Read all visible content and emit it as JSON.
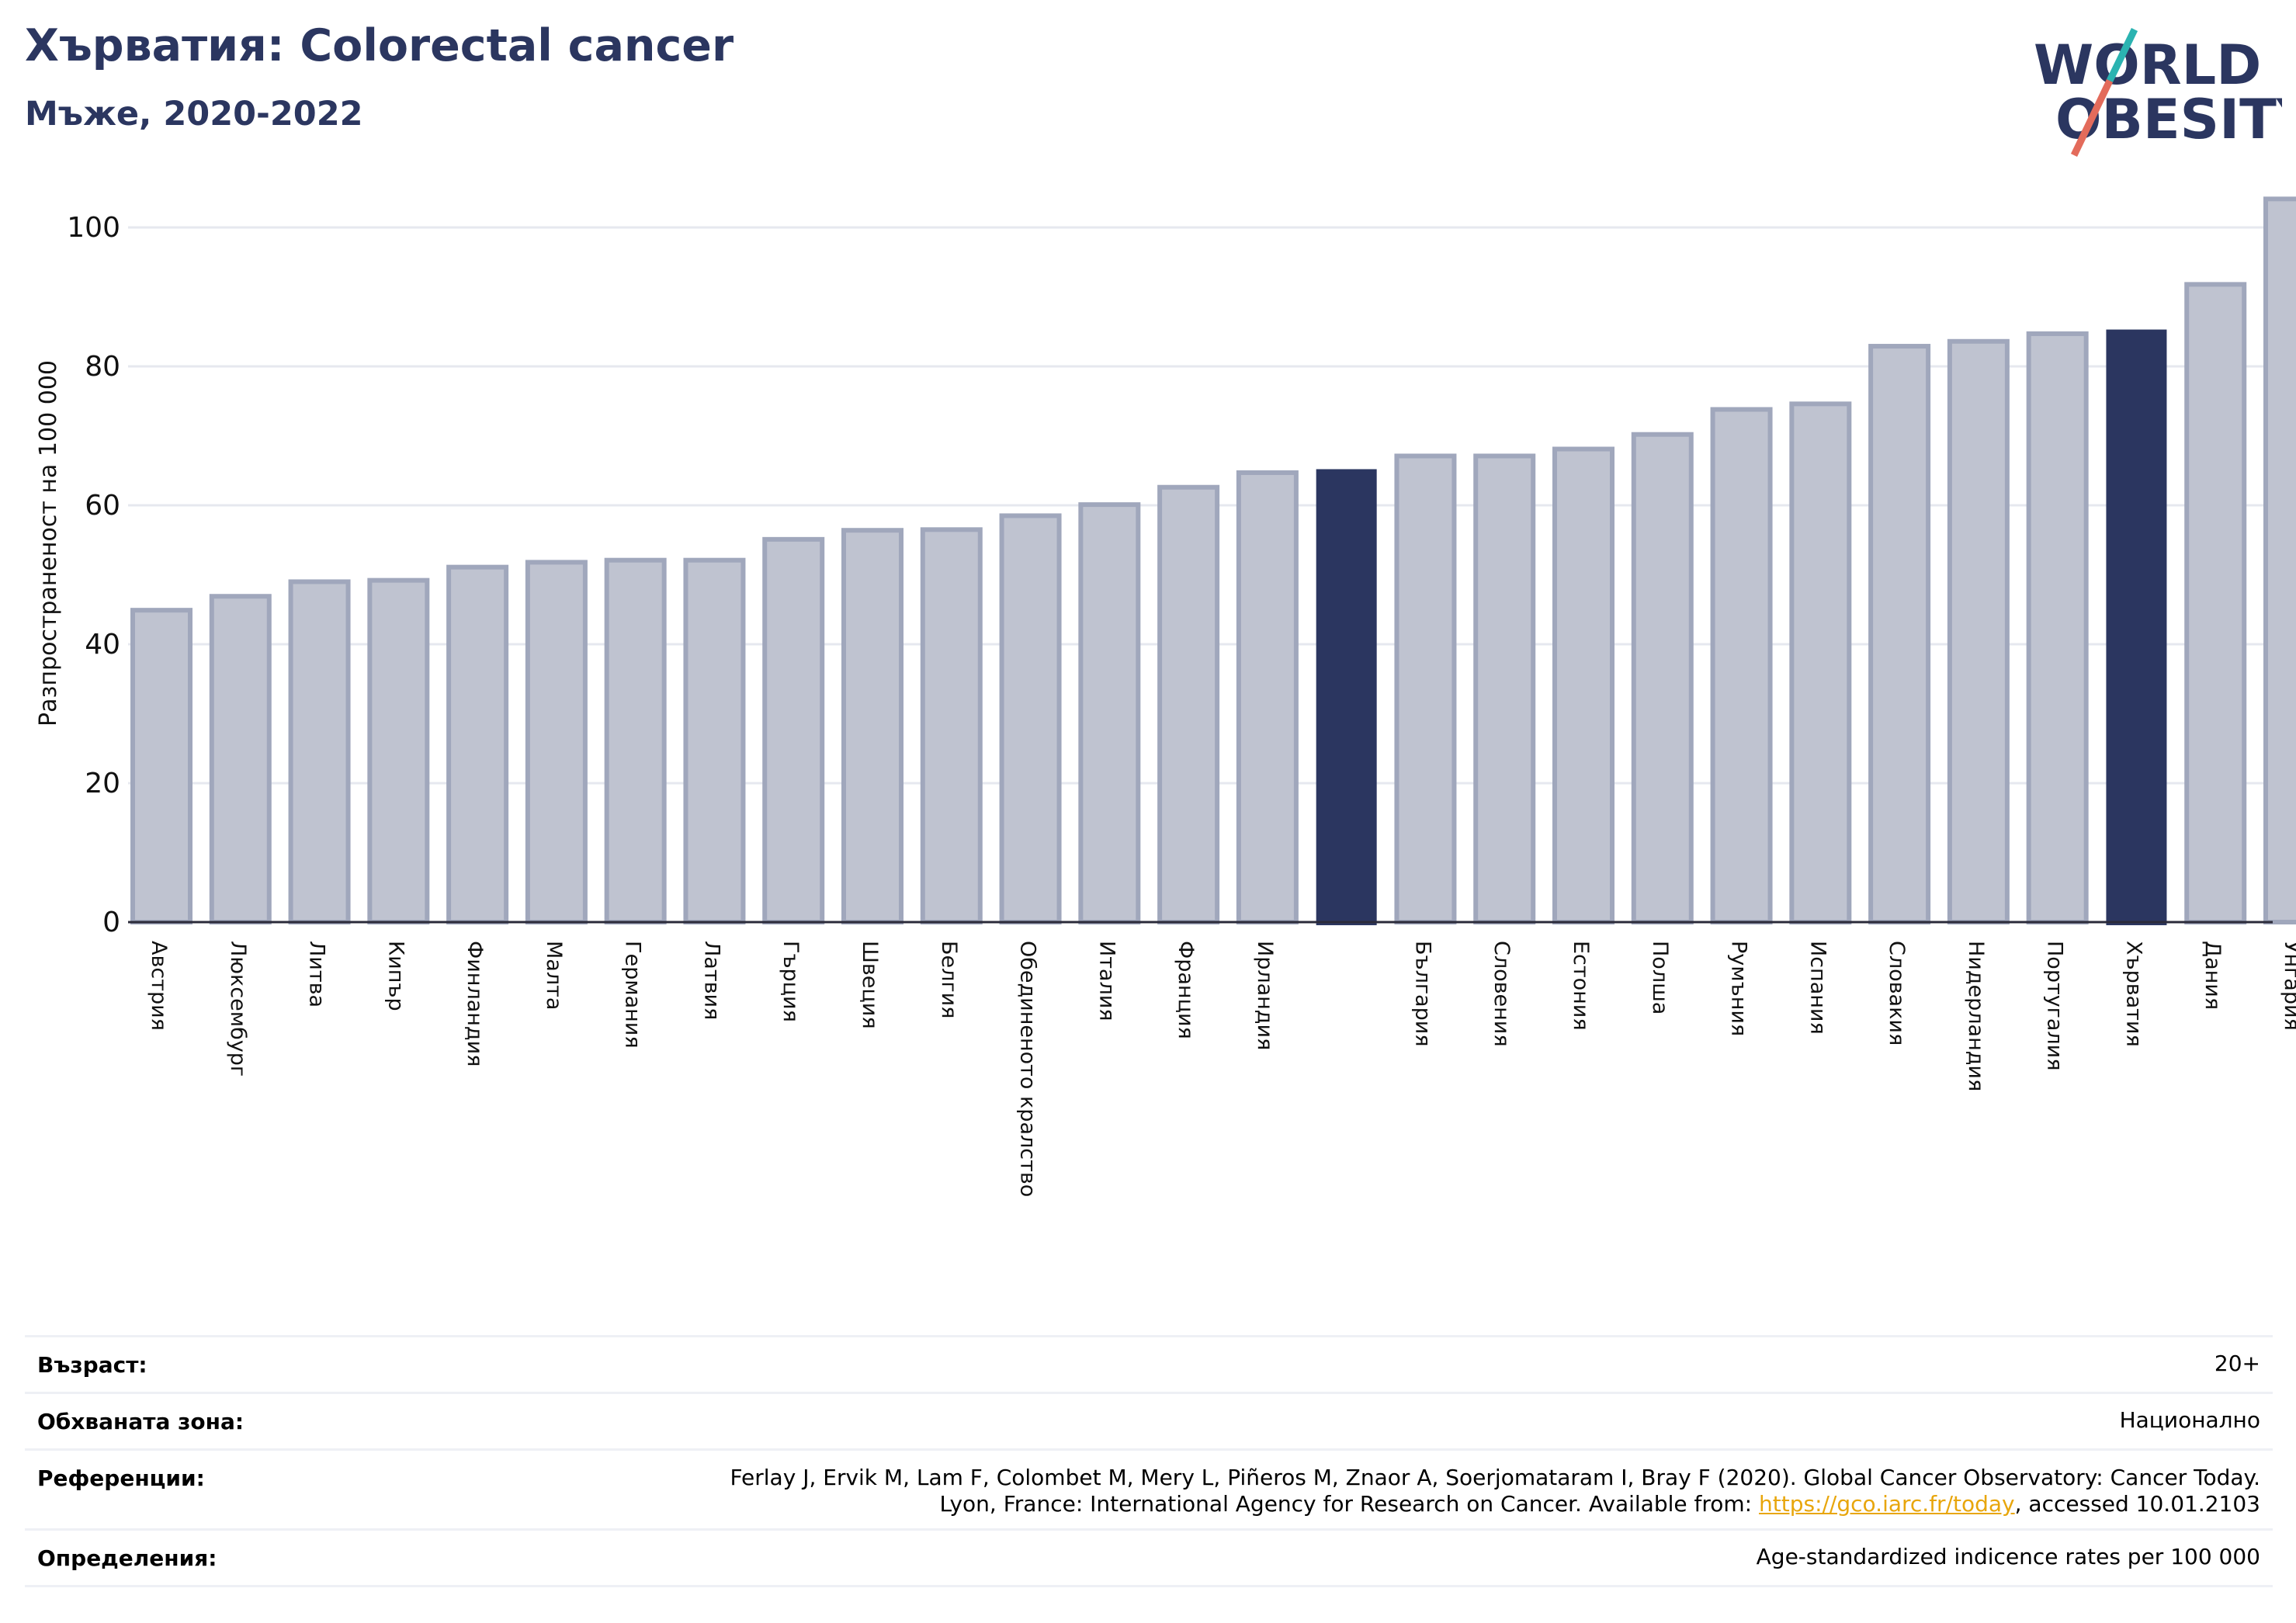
{
  "header": {
    "title": "Хърватия: Colorectal cancer",
    "subtitle": "Мъже, 2020-2022"
  },
  "logo": {
    "line1": "WORLD",
    "line2": "OBESITY"
  },
  "chart_data": {
    "type": "bar",
    "ylabel": "Разпространеност  на 100 000",
    "ylim": [
      0,
      106
    ],
    "yticks": [
      0,
      20,
      40,
      60,
      80,
      100
    ],
    "grid": true,
    "categories": [
      "Австрия",
      "Люксембург",
      "Литва",
      "Кипър",
      "Финландия",
      "Малта",
      "Германия",
      "Латвия",
      "Гърция",
      "Швеция",
      "Белгия",
      "Обединеното кралство",
      "Италия",
      "Франция",
      "Ирландия",
      "",
      "България",
      "Словения",
      "Естония",
      "Полша",
      "Румъния",
      "Испания",
      "Словакия",
      "Нидерландия",
      "Португалия",
      "Хърватия",
      "Дания",
      "Унгария"
    ],
    "values": [
      44.9,
      46.9,
      49.0,
      49.2,
      51.1,
      51.8,
      52.1,
      52.1,
      55.1,
      56.4,
      56.5,
      58.5,
      60.1,
      62.6,
      64.7,
      65.2,
      67.1,
      67.1,
      68.1,
      70.2,
      73.8,
      74.6,
      82.9,
      83.6,
      84.7,
      85.3,
      91.8,
      104.1
    ],
    "highlighted": [
      15,
      25
    ],
    "colors": {
      "bar": "#bfc3d0",
      "bar_edge": "#a0a7bc",
      "highlight": "#2b3660",
      "grid": "#e6e8ef",
      "axis": "#2b2b3a"
    }
  },
  "meta": [
    {
      "label": "Възраст:",
      "value": "20+"
    },
    {
      "label": "Обхваната зона:",
      "value": "Национално"
    },
    {
      "label": "Референции:",
      "value_line1": "Ferlay J, Ervik M, Lam F, Colombet M, Mery L, Piñeros M, Znaor A, Soerjomataram I, Bray F (2020). Global Cancer Observatory: Cancer Today.",
      "value_line2_pre": "Lyon, France: International Agency for Research on Cancer. Available from: ",
      "link": "https://gco.iarc.fr/today",
      "value_line2_post": ", accessed 10.01.2103"
    },
    {
      "label": "Определения:",
      "value": "Age-standardized indicence rates per 100 000"
    }
  ]
}
